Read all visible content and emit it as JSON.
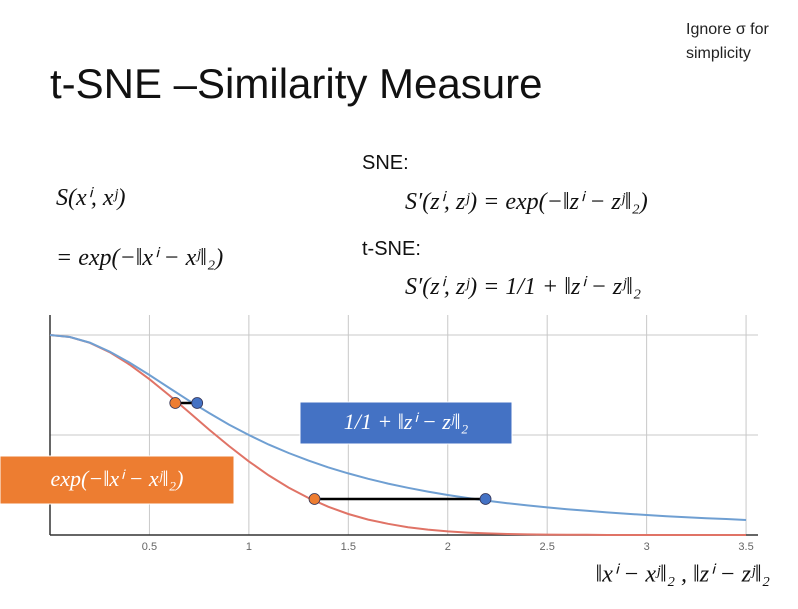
{
  "note": "Ignore σ for simplicity",
  "title": "t-SNE –Similarity Measure",
  "left_formula": [
    "S(xⁱ, xʲ)",
    "= exp(−‖xⁱ − xʲ‖₂)"
  ],
  "sne_label": "SNE:",
  "sne_formula": "S′(zⁱ, zʲ) = exp(−‖zⁱ − zʲ‖₂)",
  "tsne_label": "t-SNE:",
  "tsne_formula": "S′(zⁱ, zʲ) = 1/1 + ‖zⁱ − zʲ‖₂",
  "chart_data": {
    "type": "line",
    "x_label": "‖xⁱ − xʲ‖₂ , ‖zⁱ − zʲ‖₂",
    "x": [
      0,
      0.1,
      0.2,
      0.3,
      0.4,
      0.5,
      0.6,
      0.7,
      0.8,
      0.9,
      1.0,
      1.1,
      1.2,
      1.3,
      1.4,
      1.5,
      1.6,
      1.7,
      1.8,
      1.9,
      2.0,
      2.1,
      2.2,
      2.3,
      2.4,
      2.5,
      2.6,
      2.7,
      2.8,
      2.9,
      3.0,
      3.1,
      3.2,
      3.3,
      3.4,
      3.5
    ],
    "series": [
      {
        "name": "exp(−‖xⁱ − xʲ‖₂)",
        "color": "#e07366",
        "values": [
          1,
          0.99,
          0.961,
          0.914,
          0.852,
          0.779,
          0.698,
          0.613,
          0.527,
          0.445,
          0.368,
          0.298,
          0.237,
          0.185,
          0.141,
          0.105,
          0.077,
          0.056,
          0.039,
          0.027,
          0.018,
          0.012,
          0.008,
          0.005,
          0.003,
          0.002,
          0.001,
          0.001,
          0,
          0,
          0,
          0,
          0,
          0,
          0,
          0
        ]
      },
      {
        "name": "1/1 + ‖zⁱ − zʲ‖₂",
        "color": "#6f9fd2",
        "values": [
          1,
          0.99,
          0.962,
          0.917,
          0.862,
          0.8,
          0.735,
          0.671,
          0.61,
          0.552,
          0.5,
          0.452,
          0.41,
          0.372,
          0.338,
          0.308,
          0.281,
          0.257,
          0.236,
          0.217,
          0.2,
          0.185,
          0.171,
          0.159,
          0.148,
          0.138,
          0.129,
          0.121,
          0.113,
          0.106,
          0.1,
          0.094,
          0.089,
          0.084,
          0.08,
          0.075
        ]
      }
    ],
    "legend_colors": [
      "#ed7d31",
      "#4472c4"
    ],
    "pairs": [
      {
        "y": 0.66,
        "x": [
          0.63,
          0.74
        ]
      },
      {
        "y": 0.18,
        "x": [
          1.33,
          2.19
        ]
      }
    ],
    "xlim": [
      0,
      3.56
    ],
    "ylim": [
      0,
      1.1
    ],
    "xticks": [
      0.5,
      1,
      1.5,
      2,
      2.5,
      3,
      3.5
    ],
    "ygrid": [
      0.5,
      1
    ],
    "grid": true
  }
}
